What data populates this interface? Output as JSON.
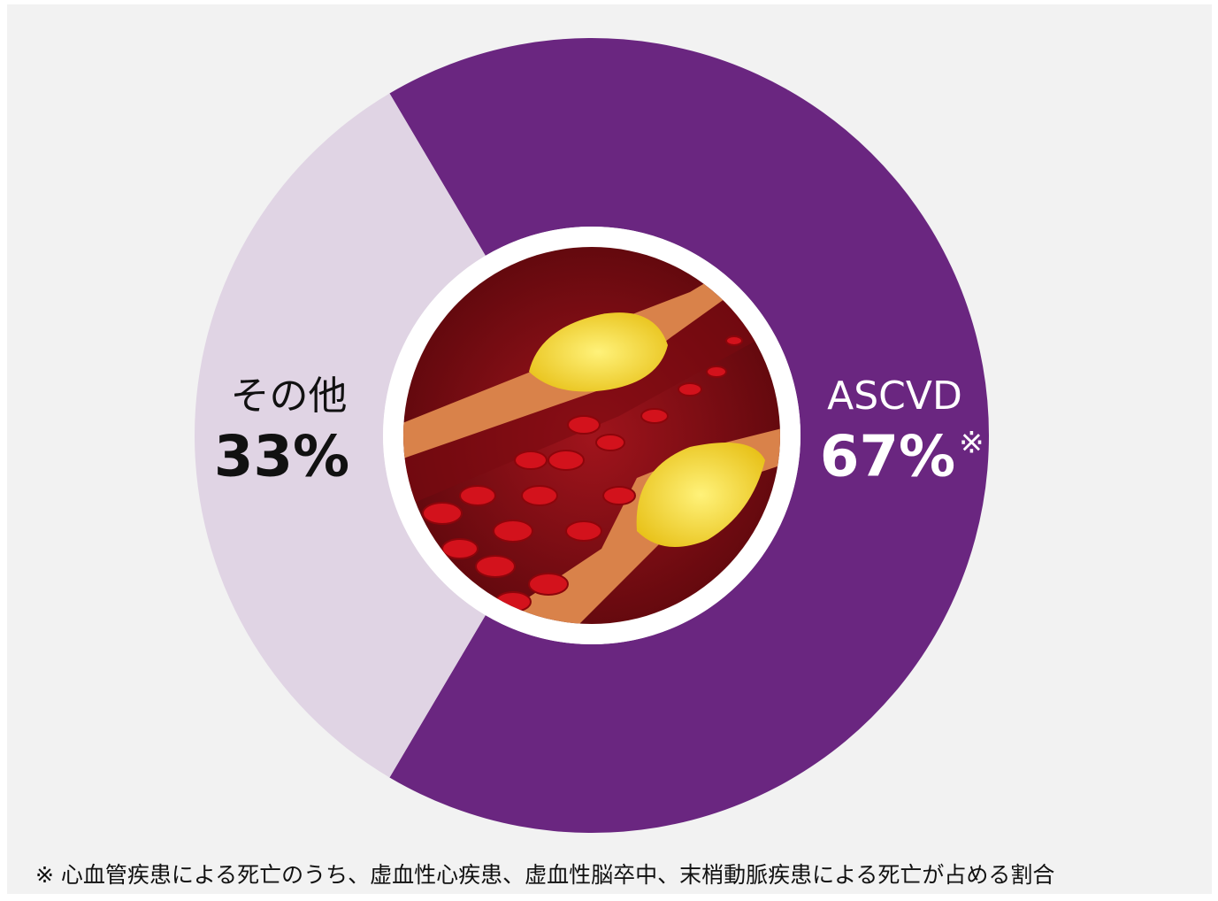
{
  "chart_data": {
    "type": "pie",
    "categories": [
      "ASCVD",
      "その他"
    ],
    "values": [
      67,
      33
    ],
    "value_labels": [
      "67%",
      "33%"
    ],
    "value_notes": [
      "※",
      null
    ],
    "colors": [
      "#6a2680",
      "#e0d4e4"
    ],
    "footnote": "※ 心血管疾患による死亡のうち、虚血性心疾患、虚血性脳卒中、末梢動脈疾患による死亡が占める割合"
  }
}
